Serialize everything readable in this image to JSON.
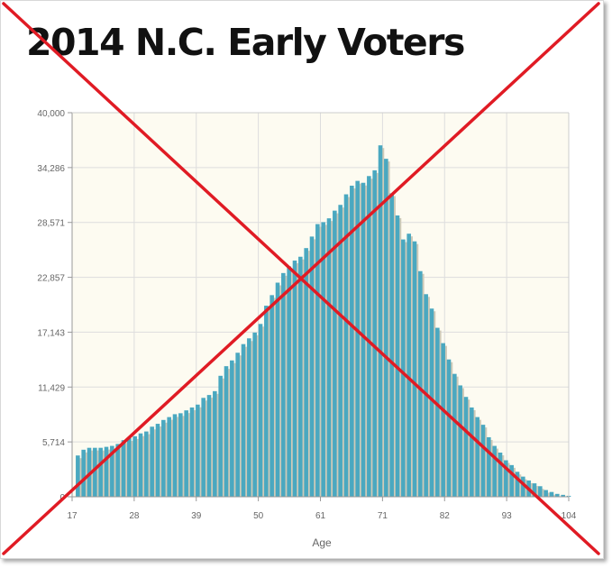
{
  "page": {
    "title": "2014 N.C. Early Voters"
  },
  "colors": {
    "bar": "#4aa8c0",
    "bar_shadow": "#cfcab8",
    "plot_bg": "#fdfbf1",
    "grid": "#dddddd",
    "cross": "#e01b24"
  },
  "chart_data": {
    "type": "bar",
    "title": "2014 N.C. Early Voters",
    "xlabel": "Age",
    "ylabel": "",
    "ylim": [
      0,
      40000
    ],
    "xlim": [
      17,
      104
    ],
    "x_ticks": [
      "17",
      "28",
      "39",
      "50",
      "61",
      "71",
      "82",
      "93",
      "104"
    ],
    "y_ticks": [
      "0",
      "5,714",
      "11,429",
      "17,143",
      "22,857",
      "28,571",
      "34,286",
      "40,000"
    ],
    "grid": true,
    "legend": "none",
    "overlay": "red X crossed over entire chart",
    "ages": [
      18,
      19,
      20,
      21,
      22,
      23,
      24,
      25,
      26,
      27,
      28,
      29,
      30,
      31,
      32,
      33,
      34,
      35,
      36,
      37,
      38,
      39,
      40,
      41,
      42,
      43,
      44,
      45,
      46,
      47,
      48,
      49,
      50,
      51,
      52,
      53,
      54,
      55,
      56,
      57,
      58,
      59,
      60,
      61,
      62,
      63,
      64,
      65,
      66,
      67,
      68,
      69,
      70,
      71,
      72,
      73,
      74,
      75,
      76,
      77,
      78,
      79,
      80,
      81,
      82,
      83,
      84,
      85,
      86,
      87,
      88,
      89,
      90,
      91,
      92,
      93,
      94,
      95,
      96,
      97,
      98,
      99,
      100,
      101,
      102,
      103,
      104
    ],
    "values": [
      4300,
      4900,
      5100,
      5100,
      5100,
      5200,
      5300,
      5500,
      5900,
      6100,
      6300,
      6600,
      6800,
      7300,
      7600,
      8000,
      8300,
      8600,
      8700,
      9000,
      9300,
      9600,
      10300,
      10600,
      11000,
      12600,
      13600,
      14200,
      15000,
      15900,
      16500,
      17100,
      18000,
      19900,
      21000,
      22300,
      23300,
      24000,
      24600,
      25000,
      25900,
      27100,
      28400,
      28600,
      29000,
      29800,
      30400,
      31500,
      32400,
      32900,
      32700,
      33400,
      34000,
      36600,
      35200,
      31600,
      29300,
      26800,
      27400,
      26600,
      23500,
      21100,
      19600,
      17600,
      16000,
      14300,
      12800,
      11600,
      10400,
      9300,
      8300,
      7500,
      6200,
      5300,
      4600,
      3800,
      3300,
      2600,
      2100,
      1700,
      1400,
      1100,
      700,
      500,
      300,
      200,
      100
    ]
  }
}
